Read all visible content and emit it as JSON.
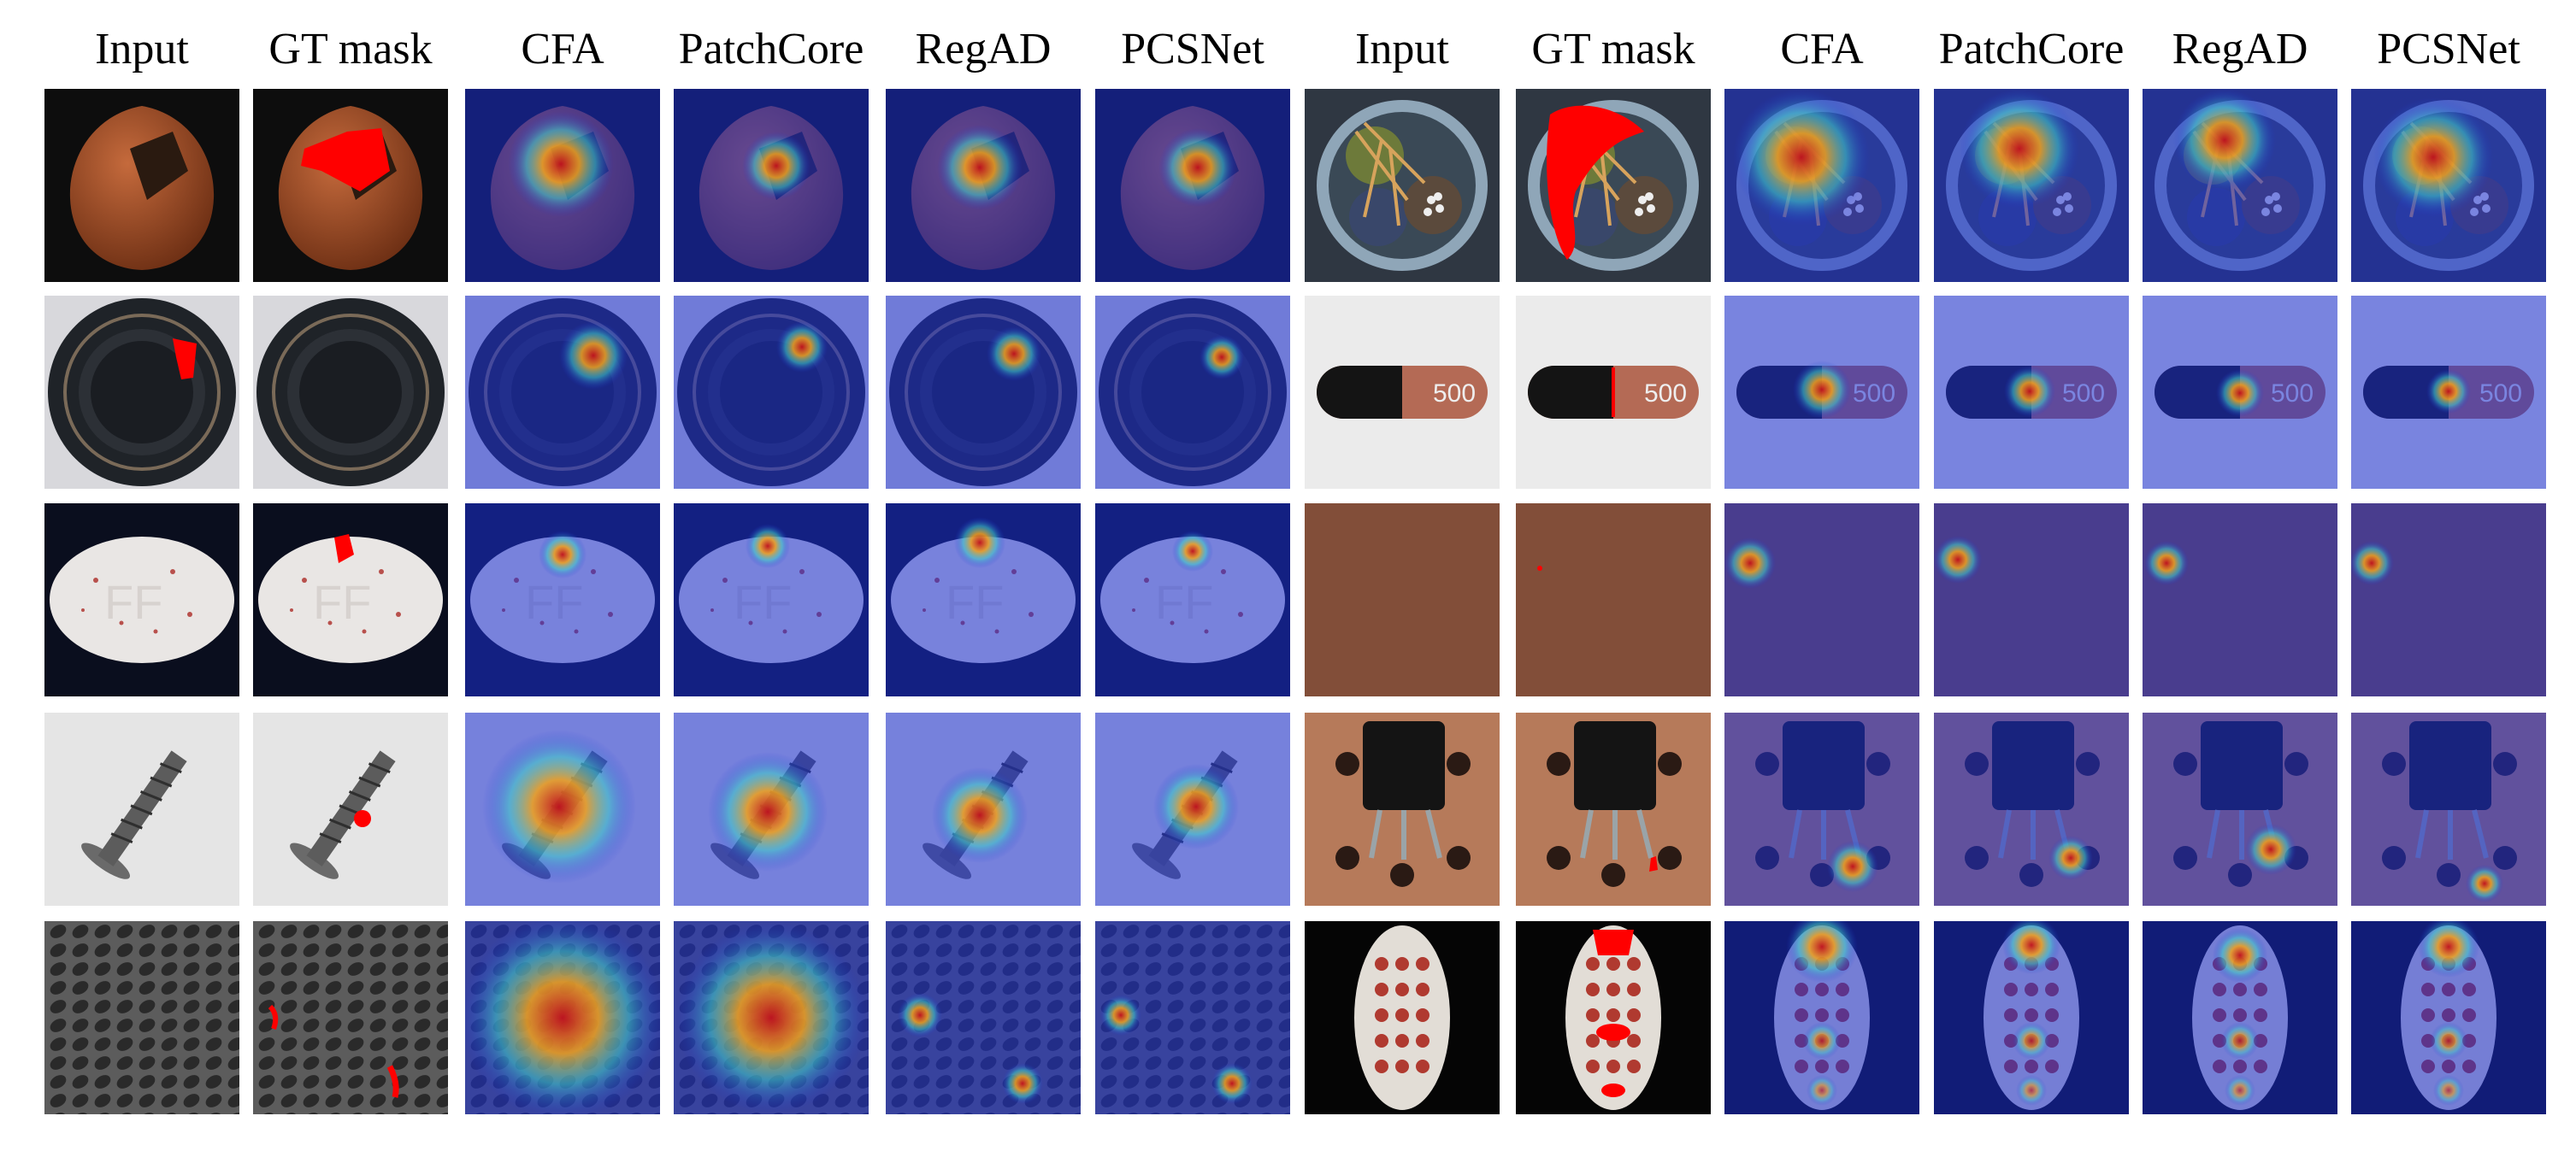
{
  "headers": [
    "Input",
    "GT mask",
    "CFA",
    "PatchCore",
    "RegAD",
    "PCSNet",
    "Input",
    "GT mask",
    "CFA",
    "PatchCore",
    "RegAD",
    "PCSNet"
  ],
  "rows": [
    {
      "left": {
        "object": "hazelnut",
        "crack_tone": "#3a2a1c"
      },
      "right": {
        "object": "cable",
        "crack_tone": "#2a2a2a"
      }
    },
    {
      "left": {
        "object": "bottle"
      },
      "right": {
        "object": "capsule",
        "print": "500"
      }
    },
    {
      "left": {
        "object": "pill",
        "emboss": "FF"
      },
      "right": {
        "object": "leather"
      }
    },
    {
      "left": {
        "object": "screw"
      },
      "right": {
        "object": "transistor"
      }
    },
    {
      "left": {
        "object": "grid"
      },
      "right": {
        "object": "zipper-like-oval"
      }
    }
  ],
  "colors": {
    "mask": "#ff0000",
    "heat_low": "#1c2fd6",
    "heat_mid": "#3fd1c8",
    "heat_high": "#c3121a"
  }
}
